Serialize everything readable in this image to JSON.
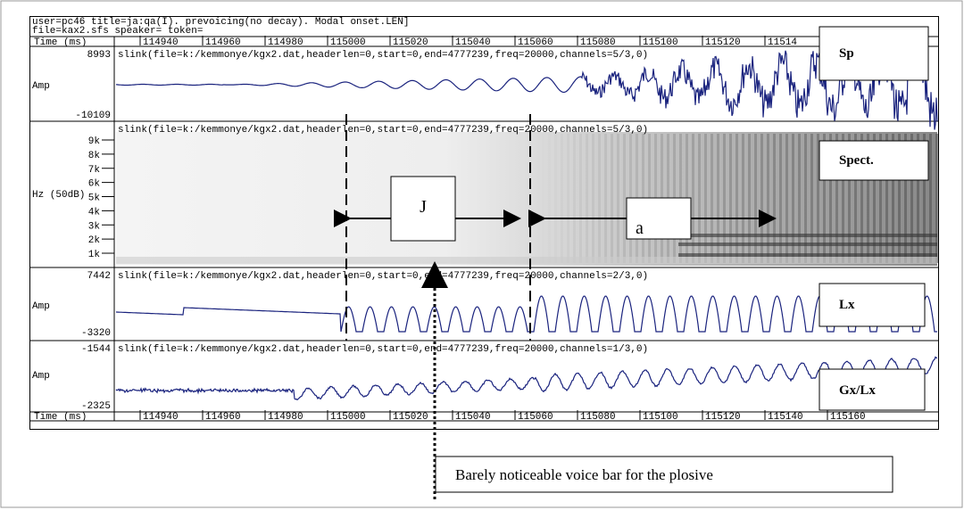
{
  "header": {
    "line1": "user=pc46 title=ja:qa(I). prevoicing(no decay). Modal onset.LEN]",
    "line2": "file=kax2.sfs speaker= token="
  },
  "top_ruler": {
    "label": "Time (ms)",
    "ticks": [
      "114940",
      "114960",
      "114980",
      "115000",
      "115020",
      "115040",
      "115060",
      "115080",
      "115100",
      "115120",
      "11514"
    ]
  },
  "bottom_ruler": {
    "label": "Time (ms)",
    "ticks": [
      "114940",
      "114960",
      "114980",
      "115000",
      "115020",
      "115040",
      "115060",
      "115080",
      "115100",
      "115120",
      "115140",
      "115160"
    ]
  },
  "panels": {
    "sp": {
      "max": "8993",
      "unit": "Amp",
      "min": "-10109",
      "info": "slink(file=k:/kemmonye/kgx2.dat,headerlen=0,start=0,end=4777239,freq=20000,channels=5/3,0)",
      "label": "Sp"
    },
    "spect": {
      "ticks": [
        "9k",
        "8k",
        "7k",
        "6k",
        "5k",
        "4k",
        "3k",
        "2k",
        "1k"
      ],
      "unit": "Hz (50dB)",
      "info": "slink(file=k:/kemmonye/kgx2.dat,headerlen=0,start=0,end=4777239,freq=20000,channels=5/3,0)",
      "label": "Spect."
    },
    "lx": {
      "max": "7442",
      "unit": "Amp",
      "min": "-3320",
      "info": "slink(file=k:/kemmonye/kgx2.dat,headerlen=0,start=0,end=4777239,freq=20000,channels=2/3,0)",
      "label": "Lx"
    },
    "gx": {
      "max": "-1544",
      "unit": "Amp",
      "min": "-2325",
      "info": "slink(file=k:/kemmonye/kgx2.dat,headerlen=0,start=0,end=4777239,freq=20000,channels=1/3,0)",
      "label": "Gx/Lx"
    }
  },
  "annotations": {
    "stop": "J",
    "vowel": "a",
    "callout": "Barely noticeable voice bar for the plosive"
  }
}
